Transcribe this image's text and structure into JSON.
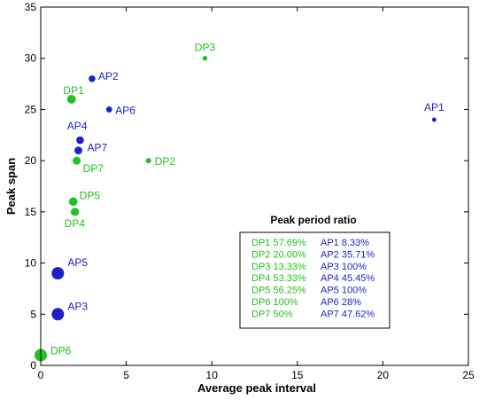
{
  "chart_data": {
    "type": "scatter",
    "xlabel": "Average peak interval",
    "ylabel": "Peak span",
    "xlim": [
      0,
      25
    ],
    "ylim": [
      0,
      35
    ],
    "xticks": [
      0,
      5,
      10,
      15,
      20,
      25
    ],
    "yticks": [
      0,
      5,
      10,
      15,
      20,
      25,
      30,
      35
    ],
    "grid": false,
    "colors": {
      "DP": "#22c022",
      "AP": "#1f1fc8",
      "axis": "#000000"
    },
    "points": [
      {
        "label": "AP1",
        "group": "AP",
        "x": 23.0,
        "y": 24,
        "ratio_value": 8.33,
        "ratio_text": "AP1 8.33%"
      },
      {
        "label": "AP2",
        "group": "AP",
        "x": 3.0,
        "y": 28,
        "ratio_value": 35.71,
        "ratio_text": "AP2 35.71%"
      },
      {
        "label": "AP3",
        "group": "AP",
        "x": 1.0,
        "y": 5,
        "ratio_value": 100,
        "ratio_text": "AP3 100%"
      },
      {
        "label": "AP4",
        "group": "AP",
        "x": 2.3,
        "y": 22,
        "ratio_value": 45.45,
        "ratio_text": "AP4 45.45%"
      },
      {
        "label": "AP5",
        "group": "AP",
        "x": 1.0,
        "y": 9,
        "ratio_value": 100,
        "ratio_text": "AP5 100%"
      },
      {
        "label": "AP6",
        "group": "AP",
        "x": 4.0,
        "y": 25,
        "ratio_value": 28,
        "ratio_text": "AP6 28%"
      },
      {
        "label": "AP7",
        "group": "AP",
        "x": 2.2,
        "y": 21,
        "ratio_value": 47.62,
        "ratio_text": "AP7 47.62%"
      },
      {
        "label": "DP1",
        "group": "DP",
        "x": 1.8,
        "y": 26,
        "ratio_value": 57.69,
        "ratio_text": "DP1 57.69%"
      },
      {
        "label": "DP2",
        "group": "DP",
        "x": 6.3,
        "y": 20,
        "ratio_value": 20.0,
        "ratio_text": "DP2 20.00%"
      },
      {
        "label": "DP3",
        "group": "DP",
        "x": 9.6,
        "y": 30,
        "ratio_value": 13.33,
        "ratio_text": "DP3 13.33%"
      },
      {
        "label": "DP4",
        "group": "DP",
        "x": 2.0,
        "y": 15,
        "ratio_value": 53.33,
        "ratio_text": "DP4 53.33%"
      },
      {
        "label": "DP5",
        "group": "DP",
        "x": 1.9,
        "y": 16,
        "ratio_value": 56.25,
        "ratio_text": "DP5 56.25%"
      },
      {
        "label": "DP6",
        "group": "DP",
        "x": 0.0,
        "y": 1,
        "ratio_value": 100,
        "ratio_text": "DP6 100%"
      },
      {
        "label": "DP7",
        "group": "DP",
        "x": 2.1,
        "y": 20,
        "ratio_value": 50,
        "ratio_text": "DP7 50%"
      }
    ],
    "annotation": {
      "title": "Peak period ratio",
      "dp_column": [
        "DP1 57.69%",
        "DP2 20.00%",
        "DP3 13.33%",
        "DP4 53.33%",
        "DP5 56.25%",
        "DP6 100%",
        "DP7 50%"
      ],
      "ap_column": [
        "AP1 8.33%",
        "AP2 35.71%",
        "AP3 100%",
        "AP4 45.45%",
        "AP5 100%",
        "AP6 28%",
        "AP7 47.62%"
      ]
    }
  }
}
